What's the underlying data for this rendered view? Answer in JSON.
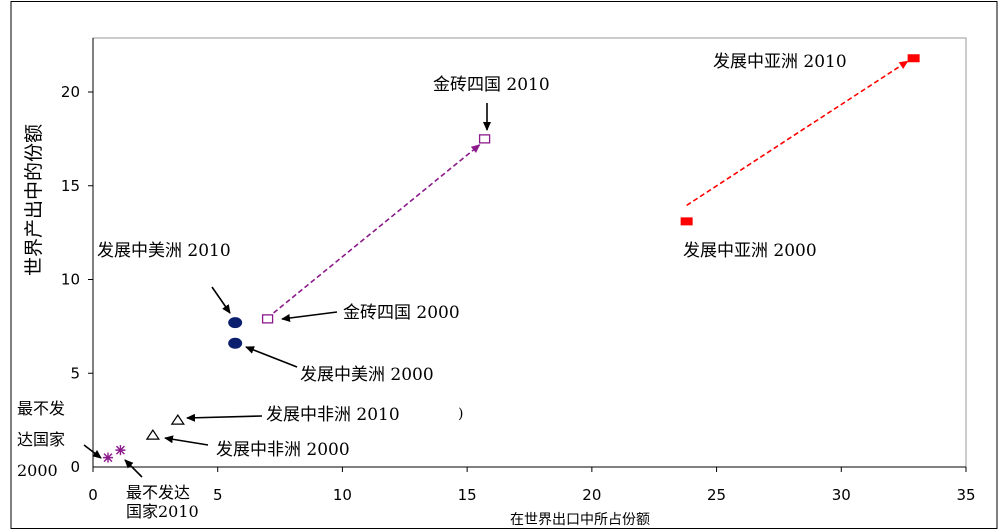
{
  "chart_data": {
    "type": "scatter",
    "title": "",
    "xlabel": "在世界出口中所占份额",
    "ylabel": "世界产出中的份额",
    "xlim": [
      0,
      35
    ],
    "ylim": [
      0,
      23
    ],
    "xticks": [
      0,
      5,
      10,
      15,
      20,
      25,
      30,
      35
    ],
    "yticks": [
      5,
      10,
      15,
      20
    ],
    "yticks_zero_label": "0",
    "grid": false,
    "legend": "none",
    "series": [
      {
        "id": "ldc",
        "color": "#8b1a8b",
        "marker": "star",
        "points": [
          {
            "x": 0.6,
            "y": 0.5
          },
          {
            "x": 1.1,
            "y": 0.9
          }
        ]
      },
      {
        "id": "africa",
        "color": "#000000",
        "marker": "triangle",
        "points": [
          {
            "x": 2.4,
            "y": 1.7
          },
          {
            "x": 3.4,
            "y": 2.5
          }
        ]
      },
      {
        "id": "america",
        "color": "#0b1f6e",
        "marker": "circle",
        "points": [
          {
            "x": 5.7,
            "y": 6.6
          },
          {
            "x": 5.7,
            "y": 7.7
          }
        ]
      },
      {
        "id": "brics",
        "color": "#8b1a8b",
        "marker": "square-open",
        "points": [
          {
            "x": 7.0,
            "y": 7.9
          },
          {
            "x": 15.7,
            "y": 17.5
          }
        ]
      },
      {
        "id": "asia",
        "color": "#ff0000",
        "marker": "square-filled",
        "points": [
          {
            "x": 23.8,
            "y": 13.1
          },
          {
            "x": 32.9,
            "y": 21.8
          }
        ]
      }
    ],
    "annotations": [
      {
        "id": "ldc-2000",
        "lines": [
          "最不发",
          "达国家",
          "2000"
        ]
      },
      {
        "id": "ldc-2010",
        "lines": [
          "最不发达",
          "国家2010"
        ]
      },
      {
        "id": "africa-2000",
        "lines": [
          "发展中非洲 2000"
        ]
      },
      {
        "id": "africa-2010",
        "lines": [
          "发展中非洲 2010"
        ]
      },
      {
        "id": "america-2000",
        "lines": [
          "发展中美洲 2000"
        ]
      },
      {
        "id": "america-2010",
        "lines": [
          "发展中美洲 2010"
        ]
      },
      {
        "id": "brics-2000",
        "lines": [
          "金砖四国 2000"
        ]
      },
      {
        "id": "brics-2010",
        "lines": [
          "金砖四国 2010"
        ]
      },
      {
        "id": "asia-2000",
        "lines": [
          "发展中亚洲 2000"
        ]
      },
      {
        "id": "asia-2010",
        "lines": [
          "发展中亚洲 2010"
        ]
      }
    ],
    "stray_marks": [
      ")"
    ]
  },
  "colors": {
    "frame": "#000000",
    "text": "#000000"
  }
}
